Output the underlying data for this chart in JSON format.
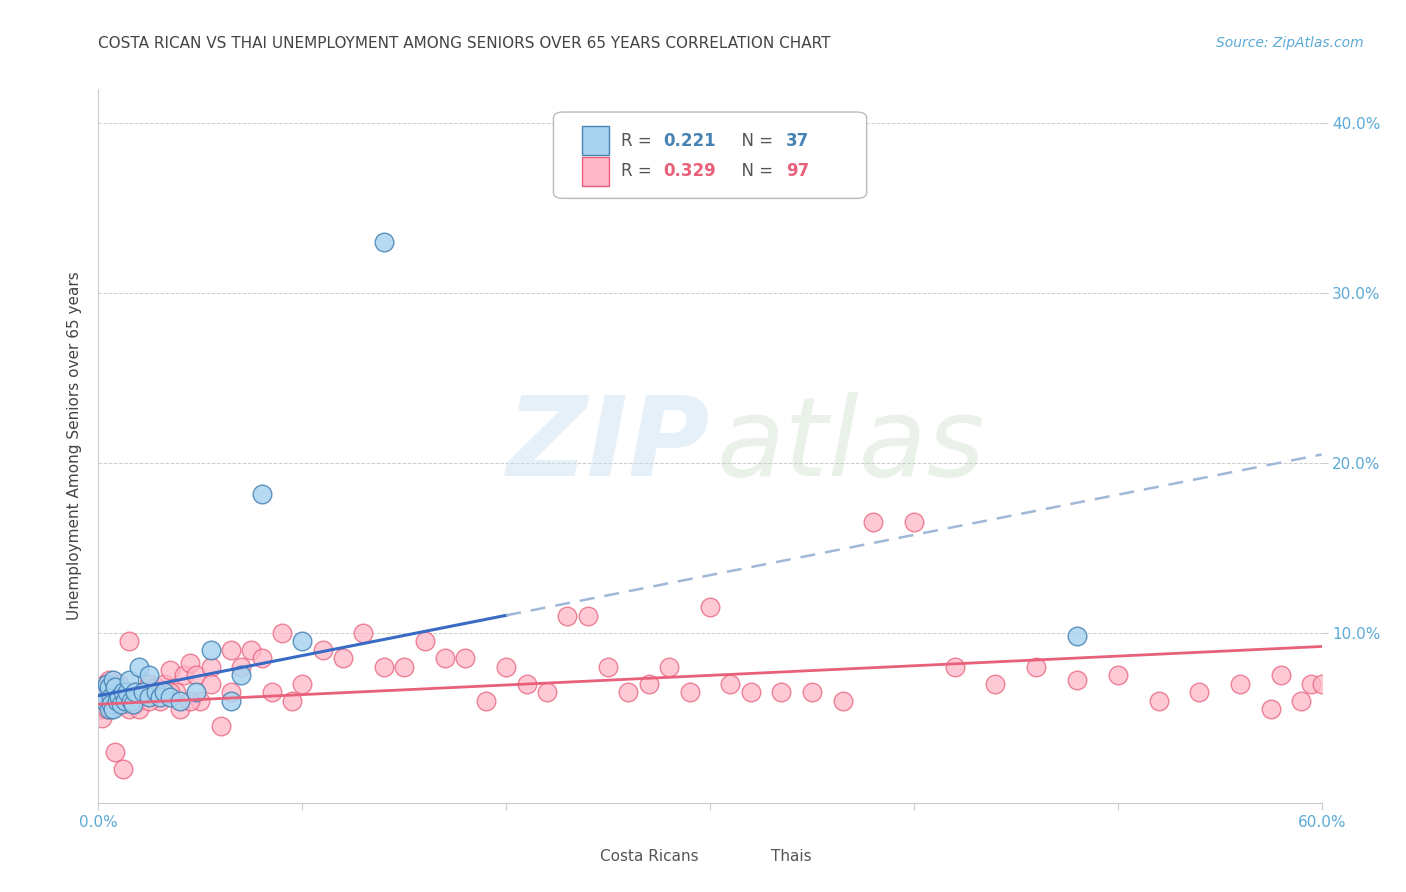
{
  "title": "COSTA RICAN VS THAI UNEMPLOYMENT AMONG SENIORS OVER 65 YEARS CORRELATION CHART",
  "source": "Source: ZipAtlas.com",
  "ylabel": "Unemployment Among Seniors over 65 years",
  "xlim": [
    0.0,
    0.6
  ],
  "ylim": [
    0.0,
    0.42
  ],
  "xticks": [
    0.0,
    0.1,
    0.2,
    0.3,
    0.4,
    0.5,
    0.6
  ],
  "xticklabels": [
    "0.0%",
    "",
    "",
    "",
    "",
    "",
    "60.0%"
  ],
  "yticks": [
    0.0,
    0.1,
    0.2,
    0.3,
    0.4
  ],
  "yticklabels": [
    "",
    "",
    "",
    "",
    ""
  ],
  "right_yticks": [
    0.1,
    0.2,
    0.3,
    0.4
  ],
  "right_yticklabels": [
    "10.0%",
    "20.0%",
    "30.0%",
    "40.0%"
  ],
  "costa_rican_fill": "#A8D4F0",
  "costa_rican_edge": "#4682B4",
  "thai_fill": "#FFB6C8",
  "thai_edge": "#E8607A",
  "blue_line_color": "#3A6BC4",
  "pink_line_color": "#E8607A",
  "dashed_line_color": "#A0B8D8",
  "tick_color": "#5BAAD8",
  "grid_color": "#CCCCCC",
  "title_color": "#444444",
  "source_color": "#5BAAD8",
  "legend_R_cr": "0.221",
  "legend_N_cr": "37",
  "legend_R_th": "0.329",
  "legend_N_th": "97",
  "costa_ricans_x": [
    0.002,
    0.003,
    0.004,
    0.005,
    0.005,
    0.006,
    0.006,
    0.007,
    0.007,
    0.008,
    0.009,
    0.01,
    0.011,
    0.012,
    0.013,
    0.014,
    0.015,
    0.016,
    0.017,
    0.018,
    0.02,
    0.022,
    0.025,
    0.025,
    0.028,
    0.03,
    0.032,
    0.035,
    0.04,
    0.048,
    0.055,
    0.065,
    0.07,
    0.08,
    0.1,
    0.14,
    0.48
  ],
  "costa_ricans_y": [
    0.065,
    0.06,
    0.07,
    0.055,
    0.068,
    0.062,
    0.058,
    0.072,
    0.055,
    0.068,
    0.06,
    0.062,
    0.058,
    0.065,
    0.06,
    0.065,
    0.072,
    0.06,
    0.058,
    0.065,
    0.08,
    0.065,
    0.075,
    0.062,
    0.065,
    0.062,
    0.065,
    0.062,
    0.06,
    0.065,
    0.09,
    0.06,
    0.075,
    0.182,
    0.095,
    0.33,
    0.098
  ],
  "thais_x": [
    0.001,
    0.002,
    0.002,
    0.003,
    0.003,
    0.004,
    0.004,
    0.005,
    0.005,
    0.006,
    0.006,
    0.007,
    0.008,
    0.008,
    0.009,
    0.01,
    0.01,
    0.011,
    0.012,
    0.013,
    0.014,
    0.015,
    0.016,
    0.016,
    0.018,
    0.019,
    0.02,
    0.022,
    0.025,
    0.028,
    0.03,
    0.032,
    0.035,
    0.038,
    0.04,
    0.042,
    0.045,
    0.048,
    0.05,
    0.055,
    0.06,
    0.065,
    0.07,
    0.075,
    0.08,
    0.085,
    0.09,
    0.095,
    0.1,
    0.11,
    0.12,
    0.13,
    0.14,
    0.15,
    0.16,
    0.17,
    0.18,
    0.19,
    0.2,
    0.21,
    0.22,
    0.23,
    0.24,
    0.25,
    0.26,
    0.27,
    0.28,
    0.29,
    0.3,
    0.31,
    0.32,
    0.335,
    0.35,
    0.365,
    0.38,
    0.4,
    0.42,
    0.44,
    0.46,
    0.48,
    0.5,
    0.52,
    0.54,
    0.56,
    0.575,
    0.58,
    0.59,
    0.595,
    0.6,
    0.015,
    0.025,
    0.035,
    0.045,
    0.055,
    0.065,
    0.008,
    0.012
  ],
  "thais_y": [
    0.055,
    0.05,
    0.065,
    0.06,
    0.07,
    0.055,
    0.068,
    0.06,
    0.072,
    0.055,
    0.068,
    0.06,
    0.058,
    0.065,
    0.06,
    0.065,
    0.07,
    0.058,
    0.06,
    0.065,
    0.058,
    0.055,
    0.06,
    0.065,
    0.058,
    0.06,
    0.055,
    0.065,
    0.07,
    0.068,
    0.06,
    0.07,
    0.078,
    0.065,
    0.055,
    0.075,
    0.082,
    0.075,
    0.06,
    0.08,
    0.045,
    0.09,
    0.08,
    0.09,
    0.085,
    0.065,
    0.1,
    0.06,
    0.07,
    0.09,
    0.085,
    0.1,
    0.08,
    0.08,
    0.095,
    0.085,
    0.085,
    0.06,
    0.08,
    0.07,
    0.065,
    0.11,
    0.11,
    0.08,
    0.065,
    0.07,
    0.08,
    0.065,
    0.115,
    0.07,
    0.065,
    0.065,
    0.065,
    0.06,
    0.165,
    0.165,
    0.08,
    0.07,
    0.08,
    0.072,
    0.075,
    0.06,
    0.065,
    0.07,
    0.055,
    0.075,
    0.06,
    0.07,
    0.07,
    0.095,
    0.06,
    0.065,
    0.06,
    0.07,
    0.065,
    0.03,
    0.02
  ],
  "cr_line_x0": 0.0,
  "cr_line_y0": 0.063,
  "cr_line_x1": 0.6,
  "cr_line_y1": 0.205,
  "th_line_x0": 0.0,
  "th_line_y0": 0.058,
  "th_line_x1": 0.6,
  "th_line_y1": 0.092
}
